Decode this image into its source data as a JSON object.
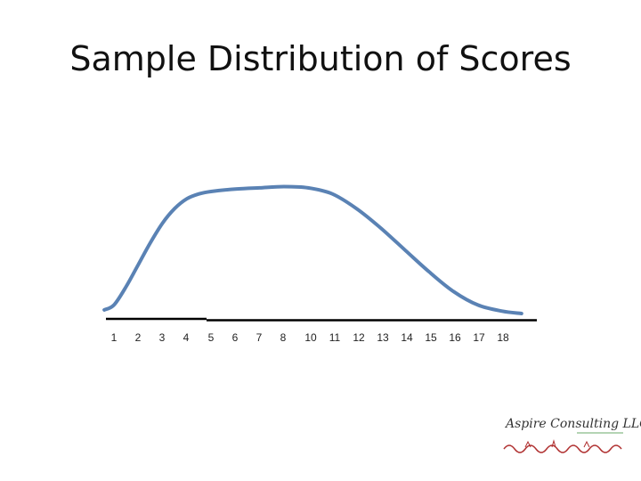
{
  "slide": {
    "title": "Sample Distribution of Scores"
  },
  "chart_data": {
    "type": "line",
    "title": "Sample Distribution of Scores",
    "xlabel": "",
    "ylabel": "",
    "x_tick_labels": [
      "1",
      "2",
      "3",
      "4",
      "5",
      "6",
      "7",
      "8",
      "10",
      "11",
      "12",
      "13",
      "14",
      "15",
      "16",
      "17",
      "18"
    ],
    "curve": {
      "x": [
        0.6,
        1.0,
        1.5,
        2.0,
        2.5,
        3.0,
        3.5,
        4.0,
        4.5,
        5.0,
        6.0,
        7.0,
        8.0,
        9.0,
        10.0,
        11.0,
        12.0,
        13.0,
        14.0,
        15.0,
        16.0,
        17.0,
        17.8
      ],
      "y": [
        0.03,
        0.07,
        0.22,
        0.4,
        0.58,
        0.74,
        0.86,
        0.94,
        0.98,
        1.0,
        1.02,
        1.03,
        1.04,
        1.03,
        0.98,
        0.86,
        0.7,
        0.52,
        0.34,
        0.18,
        0.07,
        0.02,
        0.0
      ],
      "color": "#5a82b4"
    },
    "legend": "none",
    "grid": false
  },
  "logo": {
    "text": "Aspire Consulting LLC"
  }
}
